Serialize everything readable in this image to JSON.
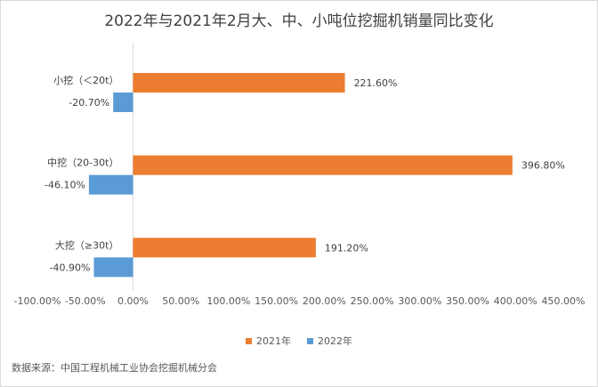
{
  "chart_data": {
    "type": "bar",
    "orientation": "horizontal",
    "title": "2022年与2021年2月大、中、小吨位挖掘机销量同比变化",
    "categories": [
      "小挖（＜20t）",
      "中挖（20-30t）",
      "大挖（≥30t）"
    ],
    "series": [
      {
        "name": "2021年",
        "color": "#ED7D31",
        "values": [
          221.6,
          396.8,
          191.2
        ],
        "labels": [
          "221.60%",
          "396.80%",
          "191.20%"
        ]
      },
      {
        "name": "2022年",
        "color": "#5B9BD5",
        "values": [
          -20.7,
          -46.1,
          -40.9
        ],
        "labels": [
          "-20.70%",
          "-46.10%",
          "-40.90%"
        ]
      }
    ],
    "xlim": [
      -100,
      450
    ],
    "x_ticks": [
      "-100.00%",
      "-50.00%",
      "0.00%",
      "50.00%",
      "100.00%",
      "150.00%",
      "200.00%",
      "250.00%",
      "300.00%",
      "350.00%",
      "400.00%",
      "450.00%"
    ],
    "legend_position": "bottom",
    "grid": false
  },
  "source": "数据来源：中国工程机械工业协会挖掘机械分会"
}
